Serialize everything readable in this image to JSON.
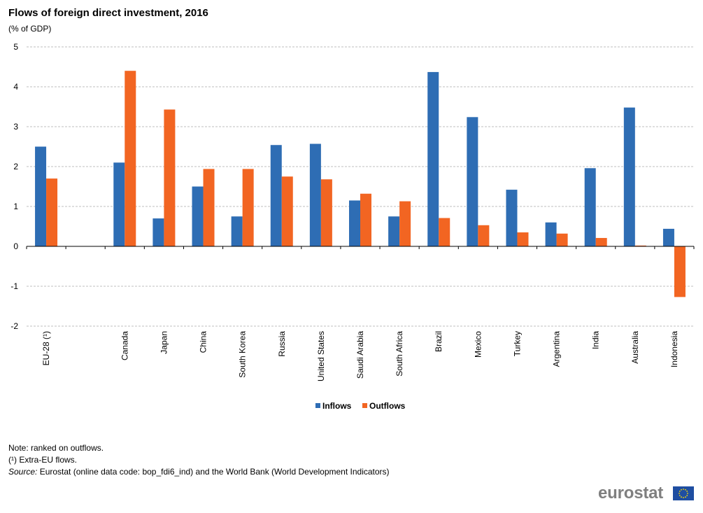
{
  "chart_data": {
    "type": "bar",
    "title": "Flows of foreign direct investment, 2016",
    "subtitle": "(% of GDP)",
    "categories": [
      "EU-28 (¹)",
      "",
      "Canada",
      "Japan",
      "China",
      "South Korea",
      "Russia",
      "United States",
      "Saudi Arabia",
      "South Africa",
      "Brazil",
      "Mexico",
      "Turkey",
      "Argentina",
      "India",
      "Australia",
      "Indonesia"
    ],
    "series": [
      {
        "name": "Inflows",
        "color": "#2e6db4",
        "values": [
          2.5,
          null,
          2.1,
          0.7,
          1.5,
          0.75,
          2.54,
          2.57,
          1.15,
          0.75,
          4.37,
          3.24,
          1.42,
          0.6,
          1.96,
          3.48,
          0.44
        ]
      },
      {
        "name": "Outflows",
        "color": "#f26522",
        "values": [
          1.7,
          null,
          4.4,
          3.43,
          1.94,
          1.94,
          1.75,
          1.68,
          1.32,
          1.13,
          0.71,
          0.53,
          0.35,
          0.32,
          0.21,
          0.02,
          -1.27
        ]
      }
    ],
    "ylim": [
      -2,
      5
    ],
    "yticks": [
      -2,
      -1,
      0,
      1,
      2,
      3,
      4,
      5
    ],
    "grid": true,
    "legend": "bottom-center"
  },
  "notes": {
    "line1": "Note: ranked on outflows.",
    "line2": "(¹) Extra-EU flows.",
    "line3_label": "Source:",
    "line3_text": " Eurostat (online data code: bop_fdi6_ind) and the World Bank (World Development Indicators)"
  },
  "logo": {
    "text": "eurostat",
    "flag_color": "#1f4ea1",
    "star_color": "#ffdd00"
  }
}
